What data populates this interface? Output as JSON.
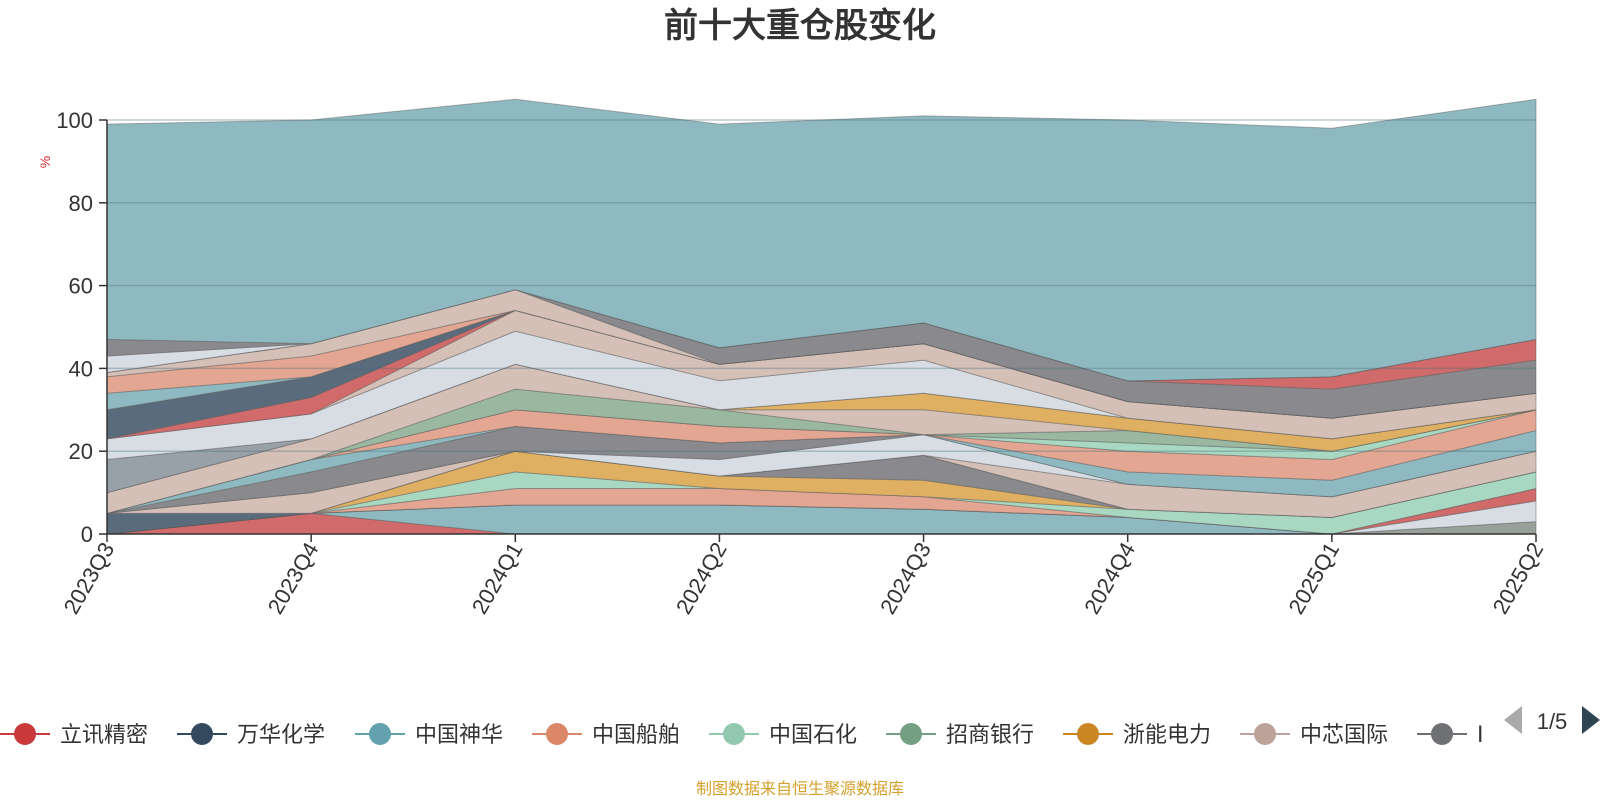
{
  "chart_data": {
    "type": "area",
    "stacked": true,
    "title": "前十大重仓股变化",
    "ylabel": "%",
    "ylim": [
      0,
      100
    ],
    "yticks": [
      0,
      20,
      40,
      60,
      80,
      100
    ],
    "grid": true,
    "categories": [
      "2023Q3",
      "2023Q4",
      "2024Q1",
      "2024Q2",
      "2024Q3",
      "2024Q4",
      "2025Q1",
      "2025Q2"
    ],
    "series": [
      {
        "name": "立讯精密",
        "color": "#d16a6a",
        "values": [
          0,
          5,
          0,
          0,
          0,
          0,
          0,
          0
        ]
      },
      {
        "name": "",
        "color": "#8fb9c0",
        "values": [
          0,
          0,
          7,
          7,
          6,
          4,
          0,
          0
        ]
      },
      {
        "name": "",
        "color": "#98a09a",
        "values": [
          0,
          0,
          0,
          0,
          0,
          0,
          0,
          3
        ]
      },
      {
        "name": "",
        "color": "#d8dde4",
        "values": [
          0,
          0,
          0,
          0,
          0,
          0,
          0,
          5
        ]
      },
      {
        "name": "",
        "color": "#d16a6a",
        "values": [
          0,
          0,
          0,
          0,
          0,
          0,
          0,
          3
        ]
      },
      {
        "name": "",
        "color": "#e3a693",
        "values": [
          0,
          0,
          4,
          4,
          3,
          0,
          0,
          0
        ]
      },
      {
        "name": "",
        "color": "#a9d8c2",
        "values": [
          0,
          0,
          4,
          0,
          0,
          2,
          4,
          4
        ]
      },
      {
        "name": "",
        "color": "#e0b062",
        "values": [
          0,
          0,
          5,
          3,
          4,
          0,
          0,
          0
        ]
      },
      {
        "name": "",
        "color": "#8a8a8e",
        "values": [
          0,
          0,
          0,
          0,
          6,
          0,
          0,
          0
        ]
      },
      {
        "name": "万华化学",
        "color": "#5a6b7c",
        "values": [
          5,
          0,
          0,
          0,
          0,
          0,
          0,
          0
        ]
      },
      {
        "name": "",
        "color": "#d5c0b8",
        "values": [
          0,
          5,
          0,
          0,
          0,
          6,
          5,
          5
        ]
      },
      {
        "name": "",
        "color": "#d8dde4",
        "values": [
          0,
          0,
          0,
          4,
          5,
          0,
          0,
          0
        ]
      },
      {
        "name": "",
        "color": "#8a8a8e",
        "values": [
          0,
          5,
          6,
          4,
          0,
          0,
          0,
          0
        ]
      },
      {
        "name": "",
        "color": "#8fb9c0",
        "values": [
          0,
          3,
          0,
          0,
          0,
          3,
          4,
          5
        ]
      },
      {
        "name": "",
        "color": "#e3a693",
        "values": [
          0,
          0,
          4,
          4,
          0,
          5,
          5,
          5
        ]
      },
      {
        "name": "",
        "color": "#a9d8c2",
        "values": [
          0,
          0,
          0,
          0,
          0,
          2,
          2,
          0
        ]
      },
      {
        "name": "",
        "color": "#9ab8a0",
        "values": [
          0,
          0,
          5,
          4,
          0,
          3,
          0,
          0
        ]
      },
      {
        "name": "中芯国际",
        "color": "#d5c0b8",
        "values": [
          5,
          5,
          6,
          0,
          6,
          0,
          0,
          0
        ]
      },
      {
        "name": "",
        "color": "#e0b062",
        "values": [
          0,
          0,
          0,
          0,
          4,
          3,
          3,
          0
        ]
      },
      {
        "name": "",
        "color": "#98a0a8",
        "values": [
          8,
          0,
          0,
          0,
          0,
          0,
          0,
          0
        ]
      },
      {
        "name": "",
        "color": "#d8dde4",
        "values": [
          5,
          6,
          8,
          7,
          8,
          0,
          0,
          0
        ]
      },
      {
        "name": "",
        "color": "#d5c0b8",
        "values": [
          0,
          0,
          5,
          4,
          4,
          4,
          5,
          4
        ]
      },
      {
        "name": "",
        "color": "#d16a6a",
        "values": [
          0,
          4,
          0,
          0,
          0,
          0,
          0,
          0
        ]
      },
      {
        "name": "",
        "color": "#5a6b7c",
        "values": [
          7,
          5,
          0,
          0,
          0,
          0,
          0,
          0
        ]
      },
      {
        "name": "",
        "color": "#8fb9c0",
        "values": [
          4,
          0,
          0,
          0,
          0,
          0,
          0,
          0
        ]
      },
      {
        "name": "",
        "color": "#e3a693",
        "values": [
          4,
          5,
          0,
          0,
          0,
          0,
          0,
          0
        ]
      },
      {
        "name": "",
        "color": "#d5c0b8",
        "values": [
          1,
          3,
          5,
          0,
          0,
          0,
          0,
          0
        ]
      },
      {
        "name": "",
        "color": "#8a8a8e",
        "values": [
          0,
          0,
          0,
          4,
          5,
          5,
          7,
          8
        ]
      },
      {
        "name": "",
        "color": "#d16a6a",
        "values": [
          0,
          0,
          0,
          0,
          0,
          0,
          3,
          5
        ]
      },
      {
        "name": "",
        "color": "#d8dde4",
        "values": [
          4,
          0,
          0,
          0,
          0,
          0,
          0,
          0
        ]
      },
      {
        "name": "",
        "color": "#8a8a8e",
        "values": [
          4,
          0,
          0,
          0,
          0,
          0,
          0,
          0
        ]
      },
      {
        "name": "",
        "color": "#8fb9c0",
        "values": [
          52,
          54,
          46,
          54,
          50,
          63,
          60,
          58
        ]
      }
    ]
  },
  "legend": {
    "items": [
      {
        "name": "立讯精密",
        "color": "#c9383a"
      },
      {
        "name": "万华化学",
        "color": "#334a5e"
      },
      {
        "name": "中国神华",
        "color": "#62a1ad"
      },
      {
        "name": "中国船舶",
        "color": "#dc8768"
      },
      {
        "name": "中国石化",
        "color": "#91c8ae"
      },
      {
        "name": "招商银行",
        "color": "#749f83"
      },
      {
        "name": "浙能电力",
        "color": "#ca8622"
      },
      {
        "name": "中芯国际",
        "color": "#bda29a"
      },
      {
        "name": "I",
        "color": "#6e7074"
      }
    ],
    "page": "1/5"
  },
  "source": "制图数据来自恒生聚源数据库"
}
